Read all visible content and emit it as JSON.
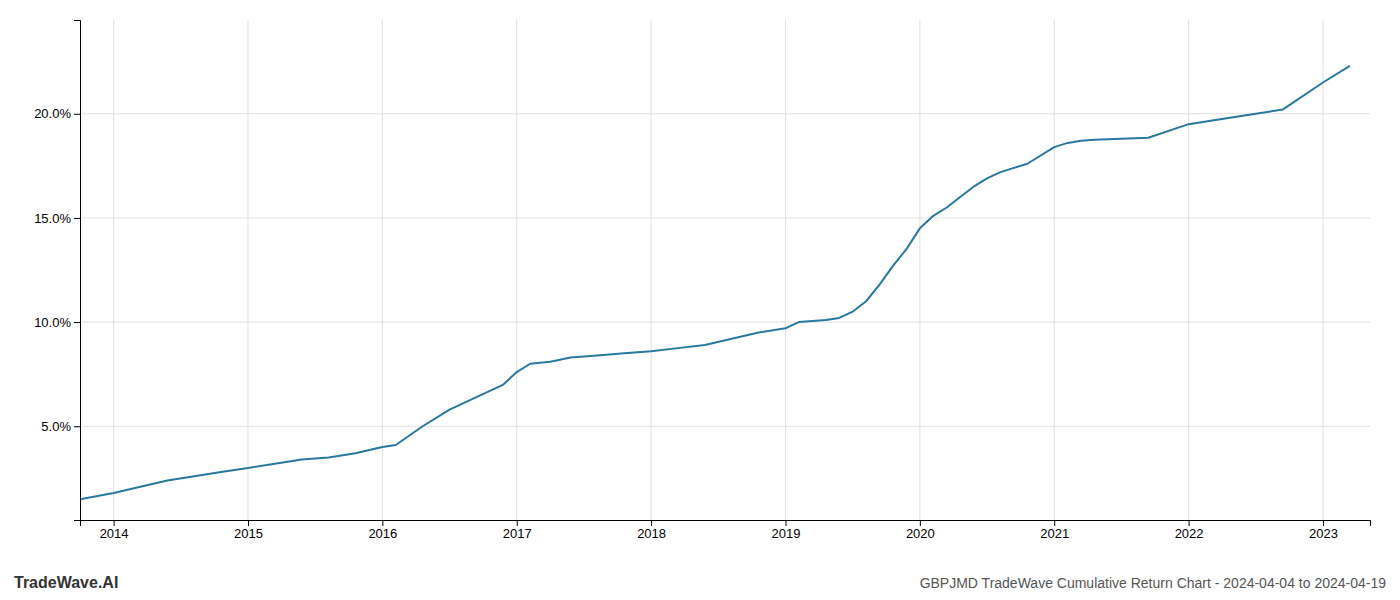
{
  "chart_data": {
    "type": "line",
    "title": "GBPJMD TradeWave Cumulative Return Chart - 2024-04-04 to 2024-04-19",
    "annotations": [
      "TradeWave.AI"
    ],
    "x": [
      2013.75,
      2014.0,
      2014.2,
      2014.4,
      2014.6,
      2014.8,
      2015.0,
      2015.2,
      2015.4,
      2015.6,
      2015.8,
      2016.0,
      2016.05,
      2016.1,
      2016.3,
      2016.5,
      2016.7,
      2016.9,
      2017.0,
      2017.1,
      2017.25,
      2017.4,
      2017.6,
      2017.8,
      2018.0,
      2018.2,
      2018.4,
      2018.6,
      2018.8,
      2019.0,
      2019.05,
      2019.1,
      2019.2,
      2019.3,
      2019.4,
      2019.5,
      2019.6,
      2019.7,
      2019.8,
      2019.9,
      2020.0,
      2020.05,
      2020.1,
      2020.2,
      2020.3,
      2020.4,
      2020.5,
      2020.6,
      2020.7,
      2020.8,
      2021.0,
      2021.1,
      2021.2,
      2021.3,
      2021.5,
      2021.7,
      2022.0,
      2022.2,
      2022.5,
      2022.7,
      2023.0,
      2023.2
    ],
    "values": [
      1.5,
      1.8,
      2.1,
      2.4,
      2.6,
      2.8,
      3.0,
      3.2,
      3.4,
      3.5,
      3.7,
      4.0,
      4.05,
      4.1,
      5.0,
      5.8,
      6.4,
      7.0,
      7.6,
      8.0,
      8.1,
      8.3,
      8.4,
      8.5,
      8.6,
      8.75,
      8.9,
      9.2,
      9.5,
      9.7,
      9.85,
      10.0,
      10.05,
      10.1,
      10.2,
      10.5,
      11.0,
      11.8,
      12.7,
      13.5,
      14.5,
      14.8,
      15.1,
      15.5,
      16.0,
      16.5,
      16.9,
      17.2,
      17.4,
      17.6,
      18.4,
      18.6,
      18.7,
      18.75,
      18.8,
      18.85,
      19.5,
      19.7,
      20.0,
      20.2,
      21.5,
      22.3
    ],
    "color": "#2878a0",
    "xlim": [
      2013.75,
      2023.35
    ],
    "ylim": [
      0.5,
      24.5
    ],
    "xticks": [
      2014,
      2015,
      2016,
      2017,
      2018,
      2019,
      2020,
      2021,
      2022,
      2023
    ],
    "yticks": [
      {
        "value": 5.0,
        "label": "5.0%"
      },
      {
        "value": 10.0,
        "label": "10.0%"
      },
      {
        "value": 15.0,
        "label": "15.0%"
      },
      {
        "value": 20.0,
        "label": "20.0%"
      }
    ],
    "grid": true
  }
}
